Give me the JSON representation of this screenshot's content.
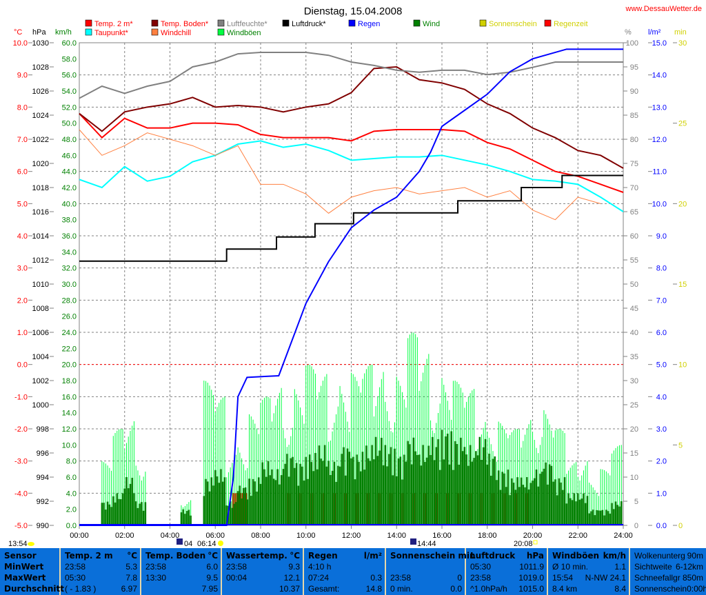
{
  "title": "Dienstag, 15.04.2008",
  "site": "www.DessauWetter.de",
  "colors": {
    "temp": "#ff0000",
    "taupunkt": "#00ffff",
    "boden": "#800000",
    "feuchte": "#808080",
    "windchill": "#ff8040",
    "windboeen": "#00ff40",
    "luftdruck": "#000000",
    "regen": "#0000ff",
    "wind": "#008000",
    "sonne": "#d0d000",
    "regenzeit": "#ff0000",
    "table_bg": "#0a6fd9"
  },
  "legend": [
    {
      "label": "Temp. 2 m*",
      "color": "#ff0000",
      "text": "#ff0000"
    },
    {
      "label": "Temp. Boden*",
      "color": "#800000",
      "text": "#ff0000"
    },
    {
      "label": "Luftfeuchte*",
      "color": "#808080",
      "text": "#808080"
    },
    {
      "label": "Luftdruck*",
      "color": "#000000",
      "text": "#000000"
    },
    {
      "label": "Regen",
      "color": "#0000ff",
      "text": "#0000ff"
    },
    {
      "label": "Wind",
      "color": "#008000",
      "text": "#008000"
    },
    {
      "label": "Sonnenschein",
      "color": "#d0d000",
      "text": "#d0d000"
    },
    {
      "label": "Regenzeit",
      "color": "#ff0000",
      "text": "#d0d000"
    },
    {
      "label": "Taupunkt*",
      "color": "#00ffff",
      "text": "#ff0000"
    },
    {
      "label": "Windchill",
      "color": "#ff8040",
      "text": "#ff0000"
    },
    {
      "label": "Windböen",
      "color": "#00ff40",
      "text": "#008000"
    }
  ],
  "axis_units": {
    "c": "°C",
    "hpa": "hPa",
    "kmh": "km/h",
    "pct": "%",
    "lm2": "l/m²",
    "min": "min"
  },
  "chart_data": {
    "type": "line",
    "title": "Dienstag, 15.04.2008",
    "x_ticks": [
      "00:00",
      "02:00",
      "04:00",
      "06:00",
      "08:00",
      "10:00",
      "12:00",
      "14:00",
      "16:00",
      "18:00",
      "20:00",
      "22:00",
      "24:00"
    ],
    "xlim": [
      0,
      24
    ],
    "axes": {
      "c": [
        -5,
        10
      ],
      "hpa": [
        990,
        1030
      ],
      "kmh": [
        0,
        60
      ],
      "pct": [
        0,
        100
      ],
      "lm2": [
        0,
        15
      ],
      "min": [
        0,
        30
      ]
    },
    "grid": true,
    "hours": [
      0,
      1,
      2,
      3,
      4,
      5,
      6,
      7,
      8,
      9,
      10,
      11,
      12,
      13,
      14,
      15,
      16,
      17,
      18,
      19,
      20,
      21,
      22,
      23,
      24
    ],
    "series": [
      {
        "name": "Temp. 2 m*",
        "axis": "c",
        "values": [
          7.8,
          7.05,
          7.65,
          7.35,
          7.35,
          7.5,
          7.5,
          7.45,
          7.15,
          7.05,
          7.05,
          7.05,
          6.95,
          7.25,
          7.3,
          7.3,
          7.3,
          7.25,
          6.9,
          6.7,
          6.35,
          6.0,
          5.85,
          5.6,
          5.35
        ]
      },
      {
        "name": "Taupunkt*",
        "axis": "c",
        "values": [
          5.75,
          5.5,
          6.15,
          5.7,
          5.85,
          6.3,
          6.5,
          6.85,
          6.95,
          6.75,
          6.85,
          6.65,
          6.35,
          6.4,
          6.45,
          6.45,
          6.5,
          6.35,
          6.2,
          6.0,
          5.75,
          5.7,
          5.6,
          5.2,
          4.75
        ]
      },
      {
        "name": "Temp. Boden*",
        "axis": "c",
        "values": [
          7.8,
          7.25,
          7.85,
          8.0,
          8.1,
          8.3,
          8.0,
          8.05,
          8.0,
          7.85,
          8.0,
          8.1,
          8.45,
          9.2,
          9.25,
          8.85,
          8.75,
          8.55,
          8.1,
          7.8,
          7.35,
          7.05,
          6.65,
          6.5,
          6.1
        ]
      },
      {
        "name": "Luftfeuchte*",
        "axis": "pct",
        "values": [
          88.5,
          91,
          89.5,
          91,
          92,
          95,
          96,
          97.7,
          98,
          98,
          98,
          97.4,
          96,
          95.3,
          94.3,
          93.9,
          94.3,
          94.3,
          93.4,
          93.9,
          94.9,
          96,
          96,
          96,
          96
        ]
      },
      {
        "name": "Windchill",
        "axis": "c",
        "values": [
          7.3,
          6.5,
          6.8,
          7.2,
          7.0,
          6.8,
          6.5,
          6.8,
          5.6,
          5.6,
          5.3,
          4.7,
          5.2,
          5.4,
          5.5,
          5.3,
          5.4,
          5.5,
          5.2,
          5.4,
          4.8,
          4.5,
          5.2,
          5.0,
          null
        ]
      }
    ],
    "luftdruck": {
      "axis": "hpa",
      "steps": [
        [
          0,
          1011.9
        ],
        [
          6.5,
          1012.9
        ],
        [
          8.7,
          1013.9
        ],
        [
          10.4,
          1015.0
        ],
        [
          12.1,
          1015.9
        ],
        [
          16.7,
          1016.9
        ],
        [
          19.5,
          1018.0
        ],
        [
          21.3,
          1019.0
        ],
        [
          24,
          1019.0
        ]
      ]
    },
    "regen": {
      "axis": "lm2",
      "points": [
        [
          0,
          0
        ],
        [
          6.5,
          0
        ],
        [
          6.8,
          1.5
        ],
        [
          7.0,
          4.0
        ],
        [
          7.4,
          4.6
        ],
        [
          8.8,
          4.65
        ],
        [
          10,
          6.9
        ],
        [
          11,
          8.2
        ],
        [
          12,
          9.25
        ],
        [
          13,
          9.8
        ],
        [
          14,
          10.2
        ],
        [
          15,
          11.0
        ],
        [
          15.5,
          11.6
        ],
        [
          16,
          12.4
        ],
        [
          17,
          12.9
        ],
        [
          18,
          13.4
        ],
        [
          19,
          14.1
        ],
        [
          20,
          14.5
        ],
        [
          21.5,
          14.8
        ],
        [
          24,
          14.8
        ]
      ]
    },
    "wind_halfhour": {
      "axis": "kmh",
      "wind": [
        0,
        0,
        3,
        4,
        6,
        3,
        0,
        0,
        0,
        2,
        0,
        6,
        7,
        3,
        5,
        6,
        8,
        7,
        9,
        8,
        9,
        10,
        8,
        10,
        9,
        10,
        11,
        10,
        9,
        11,
        10,
        11,
        12,
        11,
        10,
        11,
        9,
        7,
        6,
        6,
        7,
        8,
        6,
        4,
        4,
        2,
        2,
        3
      ],
      "windboeen": [
        0,
        0,
        8,
        12,
        14,
        10,
        0,
        0,
        0,
        4,
        0,
        18,
        16,
        10,
        12,
        14,
        16,
        18,
        17,
        18,
        20,
        19,
        18,
        20,
        19,
        20,
        21,
        20,
        19,
        24,
        22,
        20,
        20,
        18,
        17,
        15,
        14,
        13,
        12,
        14,
        16,
        15,
        12,
        8,
        10,
        6,
        7,
        10
      ]
    },
    "regenzeit_periods": [
      [
        6.75,
        7.4
      ],
      [
        8.9,
        20.0
      ]
    ]
  },
  "x_events": {
    "left": "13:54",
    "moon": "04",
    "sunrise": "06:14",
    "moon2": "14:44",
    "sunset": "20:08"
  },
  "table": [
    {
      "head": [
        "Sensor",
        ""
      ],
      "rows": [
        [
          "MinWert",
          ""
        ],
        [
          "MaxWert",
          ""
        ],
        [
          "Durchschnitt",
          ""
        ]
      ]
    },
    {
      "head": [
        "Temp. 2 m",
        "°C"
      ],
      "rows": [
        [
          "23:58",
          "5.3"
        ],
        [
          "05:30",
          "7.8"
        ],
        [
          "( - 1.83 )",
          "6.97"
        ]
      ]
    },
    {
      "head": [
        "Temp. Boden",
        "°C"
      ],
      "rows": [
        [
          "23:58",
          "6.0"
        ],
        [
          "13:30",
          "9.5"
        ],
        [
          "",
          "7.95"
        ]
      ]
    },
    {
      "head": [
        "Wassertemp.",
        "°C"
      ],
      "rows": [
        [
          "23:58",
          "9.3"
        ],
        [
          "00:04",
          "12.1"
        ],
        [
          "",
          "10.37"
        ]
      ]
    },
    {
      "head": [
        "Regen",
        "l/m²"
      ],
      "rows": [
        [
          "4:10 h",
          ""
        ],
        [
          "07:24",
          "0.3"
        ],
        [
          "Gesamt:",
          "14.8"
        ]
      ]
    },
    {
      "head": [
        "Sonnenschein min",
        ""
      ],
      "rows": [
        [
          "",
          ""
        ],
        [
          "23:58",
          "0"
        ],
        [
          "0 min.",
          "0.0"
        ]
      ]
    },
    {
      "head": [
        "Luftdruck",
        "hPa"
      ],
      "rows": [
        [
          "05:30",
          "1011.9"
        ],
        [
          "23:58",
          "1019.0"
        ],
        [
          "^1.0hPa/h",
          "1015.0"
        ]
      ]
    },
    {
      "head": [
        "Windböen",
        "km/h"
      ],
      "rows": [
        [
          "Ø 10 min.",
          "1.1"
        ],
        [
          "15:54",
          "N-NW 24.1"
        ],
        [
          "8.4 km",
          "8.4"
        ]
      ]
    },
    {
      "head": [
        "Wolkenunterg",
        "90m"
      ],
      "rows": [
        [
          "Sichtweite",
          "6-12km"
        ],
        [
          "Schneefallgr",
          "850m"
        ],
        [
          "Sonnenschein",
          "0:00h"
        ]
      ],
      "plain": true
    }
  ]
}
